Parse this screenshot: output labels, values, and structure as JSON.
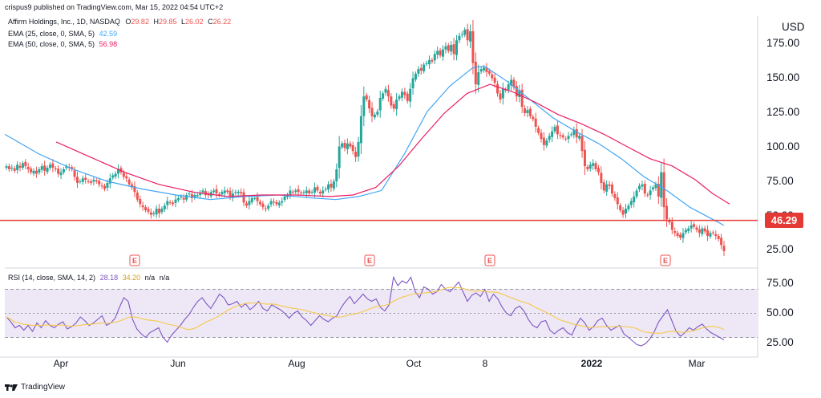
{
  "header": {
    "published": "crispus9 published on TradingView.com, Mar 15, 2022 04:54 UTC+2"
  },
  "legend": {
    "symbol": "Affirm Holdings, Inc., 1D, NASDAQ",
    "o_label": "O",
    "o": "29.82",
    "h_label": "H",
    "h": "29.85",
    "l_label": "L",
    "l": "26.02",
    "c_label": "C",
    "c": "26.22",
    "ema25_label": "EMA (25, close, 0, SMA, 5)",
    "ema25": "42.59",
    "ema50_label": "EMA (50, close, 0, SMA, 5)",
    "ema50": "56.98",
    "rsi_label": "RSI (14, close, SMA, 14, 2)",
    "rsi": "28.18",
    "rsi_ma": "34.20",
    "na1": "n/a",
    "na2": "n/a"
  },
  "price_axis": {
    "currency": "USD",
    "ticks": [
      "175.00",
      "150.00",
      "125.00",
      "100.00",
      "75.00",
      "50.00",
      "25.00"
    ]
  },
  "rsi_axis": {
    "ticks": [
      "75.00",
      "50.00",
      "25.00"
    ]
  },
  "time_axis": {
    "labels": [
      "Apr",
      "Jun",
      "Aug",
      "Oct",
      "8",
      "2022",
      "Mar"
    ]
  },
  "horizontal_line": {
    "value": 46.29,
    "label": "46.29"
  },
  "earnings_marker": "E",
  "branding": "TradingView",
  "colors": {
    "up": "#26a69a",
    "down": "#ef5350",
    "ema25": "#42a5f5",
    "ema50": "#e91e63",
    "hline": "#e53935",
    "rsi": "#7e57c2",
    "rsi_ma": "#f7c948",
    "rsi_band": "#ede7f6"
  },
  "chart_data": [
    {
      "type": "candlestick",
      "title": "Affirm Holdings, Inc., 1D, NASDAQ",
      "ylabel": "USD",
      "ylim": [
        17,
        181
      ],
      "x_ticks": [
        "Apr",
        "Jun",
        "Aug",
        "Oct",
        "8",
        "2022",
        "Mar"
      ],
      "closes_approx": [
        82,
        80,
        81,
        79,
        83,
        81,
        84,
        82,
        80,
        78,
        79,
        77,
        80,
        82,
        79,
        81,
        83,
        81,
        80,
        77,
        78,
        80,
        82,
        81,
        80,
        75,
        71,
        72,
        74,
        73,
        72,
        71,
        73,
        72,
        70,
        69,
        67,
        71,
        74,
        76,
        77,
        80,
        78,
        75,
        74,
        70,
        68,
        65,
        60,
        57,
        55,
        53,
        52,
        50,
        51,
        54,
        51,
        54,
        56,
        59,
        58,
        57,
        60,
        61,
        62,
        60,
        63,
        64,
        61,
        63,
        63,
        64,
        66,
        63,
        63,
        65,
        66,
        64,
        63,
        65,
        66,
        65,
        62,
        64,
        65,
        65,
        64,
        58,
        56,
        59,
        61,
        61,
        59,
        57,
        55,
        54,
        56,
        59,
        58,
        57,
        58,
        59,
        62,
        63,
        66,
        65,
        66,
        65,
        64,
        65,
        66,
        64,
        65,
        68,
        66,
        64,
        66,
        67,
        70,
        68,
        72,
        80,
        95,
        97,
        94,
        97,
        95,
        92,
        88,
        98,
        115,
        128,
        126,
        120,
        115,
        116,
        118,
        127,
        130,
        133,
        128,
        122,
        120,
        126,
        128,
        131,
        129,
        125,
        133,
        140,
        143,
        146,
        145,
        149,
        150,
        152,
        151,
        156,
        158,
        155,
        159,
        161,
        158,
        162,
        156,
        165,
        168,
        169,
        172,
        165,
        171,
        150,
        136,
        144,
        146,
        147,
        144,
        143,
        140,
        137,
        130,
        126,
        133,
        132,
        136,
        139,
        134,
        128,
        132,
        121,
        117,
        119,
        115,
        113,
        108,
        104,
        100,
        96,
        99,
        102,
        105,
        108,
        103,
        102,
        101,
        100,
        102,
        103,
        106,
        101,
        102,
        92,
        82,
        80,
        83,
        84,
        80,
        78,
        71,
        66,
        70,
        69,
        64,
        61,
        57,
        53,
        50,
        54,
        56,
        59,
        62,
        66,
        69,
        70,
        64,
        63,
        66,
        68,
        70,
        62,
        78,
        55,
        47,
        45,
        40,
        38,
        36,
        35,
        38,
        40,
        41,
        43,
        42,
        40,
        38,
        41,
        39,
        36,
        38,
        38,
        36,
        34,
        30,
        26
      ],
      "series": [
        {
          "name": "EMA (25, close, 0, SMA, 5)",
          "last": 42.59,
          "points_approx": [
            [
              0,
              103
            ],
            [
              30,
              90
            ],
            [
              60,
              80
            ],
            [
              90,
              72
            ],
            [
              120,
              67
            ],
            [
              150,
              63
            ],
            [
              180,
              60
            ],
            [
              210,
              62
            ],
            [
              240,
              63
            ],
            [
              270,
              61
            ],
            [
              290,
              60
            ],
            [
              310,
              62
            ],
            [
              330,
              66
            ],
            [
              350,
              90
            ],
            [
              370,
              118
            ],
            [
              390,
              135
            ],
            [
              410,
              147
            ],
            [
              420,
              148
            ],
            [
              440,
              138
            ],
            [
              460,
              126
            ],
            [
              480,
              114
            ],
            [
              500,
              105
            ],
            [
              520,
              97
            ],
            [
              540,
              87
            ],
            [
              560,
              75
            ],
            [
              580,
              66
            ],
            [
              600,
              55
            ],
            [
              620,
              47
            ],
            [
              630,
              43
            ]
          ]
        },
        {
          "name": "EMA (50, close, 0, SMA, 5)",
          "last": 56.98,
          "points_approx": [
            [
              45,
              98
            ],
            [
              75,
              88
            ],
            [
              105,
              78
            ],
            [
              135,
              70
            ],
            [
              165,
              65
            ],
            [
              195,
              62
            ],
            [
              225,
              63
            ],
            [
              255,
              63
            ],
            [
              285,
              62
            ],
            [
              305,
              63
            ],
            [
              325,
              68
            ],
            [
              345,
              82
            ],
            [
              365,
              100
            ],
            [
              385,
              117
            ],
            [
              405,
              130
            ],
            [
              425,
              136
            ],
            [
              445,
              131
            ],
            [
              465,
              124
            ],
            [
              485,
              116
            ],
            [
              505,
              110
            ],
            [
              525,
              103
            ],
            [
              545,
              95
            ],
            [
              565,
              87
            ],
            [
              585,
              82
            ],
            [
              605,
              73
            ],
            [
              620,
              64
            ],
            [
              635,
              57
            ]
          ]
        }
      ]
    },
    {
      "type": "line",
      "title": "RSI (14, close, SMA, 14, 2)",
      "ylim": [
        17,
        85
      ],
      "band": [
        30,
        70
      ],
      "midline": 50,
      "x_ticks": [
        "Apr",
        "Jun",
        "Aug",
        "Oct",
        "8",
        "2022",
        "Mar"
      ],
      "series": [
        {
          "name": "RSI",
          "last": 28.18,
          "values_approx": [
            47,
            43,
            38,
            40,
            36,
            40,
            35,
            42,
            38,
            44,
            40,
            38,
            41,
            43,
            37,
            39,
            42,
            47,
            44,
            40,
            42,
            45,
            48,
            40,
            42,
            46,
            55,
            63,
            60,
            45,
            37,
            33,
            30,
            34,
            36,
            38,
            30,
            26,
            32,
            36,
            40,
            45,
            49,
            55,
            60,
            63,
            58,
            54,
            60,
            66,
            63,
            57,
            58,
            60,
            55,
            58,
            53,
            56,
            60,
            54,
            52,
            57,
            55,
            53,
            50,
            46,
            50,
            52,
            47,
            44,
            40,
            44,
            48,
            45,
            43,
            46,
            48,
            55,
            60,
            64,
            58,
            62,
            66,
            62,
            60,
            62,
            55,
            52,
            57,
            80,
            73,
            77,
            75,
            80,
            68,
            63,
            72,
            70,
            66,
            68,
            74,
            70,
            68,
            72,
            76,
            68,
            60,
            65,
            67,
            64,
            70,
            60,
            66,
            62,
            55,
            50,
            48,
            54,
            56,
            52,
            45,
            40,
            38,
            43,
            44,
            36,
            33,
            36,
            38,
            34,
            32,
            40,
            46,
            42,
            36,
            39,
            44,
            46,
            40,
            36,
            38,
            40,
            33,
            30,
            27,
            24,
            23,
            25,
            29,
            35,
            43,
            48,
            53,
            44,
            35,
            31,
            34,
            38,
            36,
            39,
            41,
            37,
            34,
            32,
            30,
            28
          ]
        },
        {
          "name": "RSI SMA",
          "last": 34.2
        }
      ]
    }
  ]
}
